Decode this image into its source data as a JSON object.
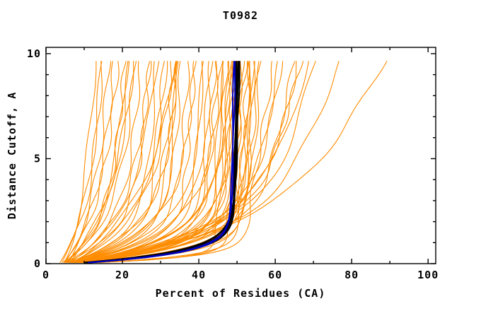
{
  "figure": {
    "background": "#ffffff",
    "frame_color": "#000000",
    "text_color": "#000000"
  },
  "chart_data": {
    "type": "line",
    "title": "T0982",
    "xlabel": "Percent of Residues (CA)",
    "ylabel": "Distance Cutoff, A",
    "xlim": [
      0,
      102
    ],
    "ylim": [
      0,
      10.3
    ],
    "x_major_ticks": [
      0,
      20,
      40,
      60,
      80,
      100
    ],
    "x_minor_ticks": [
      10,
      30,
      50,
      70,
      90
    ],
    "y_major_ticks": [
      0,
      5,
      10
    ],
    "y_minor_ticks": [
      1,
      2,
      3,
      4,
      6,
      7,
      8,
      9
    ],
    "grid": false,
    "legend": "none",
    "curve_y_start": 0.05,
    "curve_y_end": 9.7,
    "curve_model": "x(y) = x0 + A*(1-exp(-y/tau)) + B*y  (params per curve: [x0,A,tau,B])",
    "series": [
      {
        "name": "server-model-curves",
        "color": "#ff8c00",
        "width": 1.1,
        "wiggle": 0.55,
        "curves": [
          [
            4.0,
            6.5,
            2.6,
            0.25
          ],
          [
            4.5,
            7.5,
            3.0,
            0.3
          ],
          [
            3.5,
            8.0,
            2.2,
            0.35
          ],
          [
            5.0,
            9.0,
            2.8,
            0.28
          ],
          [
            4.2,
            10.0,
            2.4,
            0.4
          ],
          [
            5.5,
            11.0,
            3.2,
            0.3
          ],
          [
            4.8,
            12.5,
            2.0,
            0.35
          ],
          [
            5.2,
            13.5,
            2.7,
            0.3
          ],
          [
            4.0,
            14.0,
            1.8,
            0.4
          ],
          [
            6.0,
            14.5,
            3.5,
            0.35
          ],
          [
            5.0,
            15.5,
            2.3,
            0.3
          ],
          [
            4.5,
            16.0,
            1.6,
            0.45
          ],
          [
            5.5,
            17.0,
            2.0,
            0.5
          ],
          [
            4.8,
            18.5,
            1.5,
            0.4
          ],
          [
            6.2,
            19.0,
            2.6,
            0.45
          ],
          [
            5.0,
            20.5,
            1.2,
            0.35
          ],
          [
            5.8,
            21.0,
            1.9,
            0.5
          ],
          [
            4.5,
            22.5,
            1.0,
            0.4
          ],
          [
            6.5,
            23.0,
            2.2,
            0.4
          ],
          [
            5.2,
            24.0,
            1.4,
            0.45
          ],
          [
            6.0,
            25.0,
            1.7,
            0.35
          ],
          [
            5.5,
            26.0,
            1.1,
            0.3
          ],
          [
            4.8,
            24.5,
            0.9,
            0.55
          ],
          [
            6.8,
            22.0,
            2.9,
            0.6
          ],
          [
            5.0,
            27.5,
            1.3,
            0.3
          ],
          [
            5.5,
            28.0,
            1.0,
            0.4
          ],
          [
            6.0,
            29.5,
            1.6,
            0.35
          ],
          [
            4.8,
            30.0,
            0.8,
            0.45
          ],
          [
            6.5,
            31.0,
            1.4,
            0.4
          ],
          [
            5.2,
            32.5,
            0.9,
            0.35
          ],
          [
            5.8,
            33.0,
            1.2,
            0.45
          ],
          [
            6.2,
            34.0,
            0.7,
            0.3
          ],
          [
            5.0,
            35.5,
            1.0,
            0.4
          ],
          [
            6.8,
            34.5,
            1.5,
            0.5
          ],
          [
            5.5,
            36.0,
            0.85,
            0.35
          ],
          [
            6.0,
            37.0,
            1.1,
            0.4
          ],
          [
            5.2,
            38.0,
            0.75,
            0.3
          ],
          [
            6.5,
            37.5,
            1.3,
            0.45
          ],
          [
            5.8,
            39.0,
            0.95,
            0.35
          ],
          [
            5.0,
            38.5,
            0.65,
            0.4
          ],
          [
            6.2,
            40.0,
            1.05,
            0.3
          ],
          [
            5.5,
            40.5,
            0.8,
            0.35
          ],
          [
            6.0,
            41.0,
            0.9,
            0.25
          ],
          [
            5.2,
            41.5,
            0.7,
            0.3
          ],
          [
            6.5,
            42.0,
            0.6,
            0.2
          ],
          [
            5.8,
            42.5,
            0.75,
            0.3
          ],
          [
            6.0,
            43.0,
            0.55,
            0.25
          ],
          [
            7.0,
            43.5,
            0.85,
            0.3
          ],
          [
            5.5,
            44.0,
            0.65,
            0.35
          ],
          [
            6.8,
            44.5,
            0.7,
            0.25
          ],
          [
            6.2,
            45.0,
            0.5,
            0.3
          ],
          [
            7.2,
            45.5,
            0.9,
            0.35
          ],
          [
            6.0,
            46.0,
            0.6,
            0.25
          ],
          [
            7.5,
            44.0,
            1.1,
            0.45
          ],
          [
            7.0,
            44.0,
            0.3,
            0.9
          ],
          [
            6.5,
            40.0,
            0.25,
            0.6
          ],
          [
            7.5,
            42.0,
            0.35,
            0.4
          ],
          [
            6.0,
            38.0,
            0.22,
            0.5
          ],
          [
            6.5,
            45.0,
            1.2,
            1.0
          ],
          [
            7.0,
            46.0,
            1.4,
            0.9
          ],
          [
            6.0,
            47.5,
            1.0,
            1.2
          ],
          [
            7.5,
            48.0,
            1.6,
            1.1
          ],
          [
            6.8,
            46.5,
            1.3,
            1.4
          ],
          [
            7.2,
            49.0,
            1.8,
            1.3
          ],
          [
            6.5,
            50.0,
            1.5,
            1.45
          ],
          [
            8.0,
            48.0,
            1.4,
            2.2
          ],
          [
            10.0,
            50.0,
            1.8,
            3.0
          ]
        ]
      },
      {
        "name": "highlight-model-curves-black",
        "color": "#000000",
        "width": 2.0,
        "wiggle": 0.12,
        "curves": [
          [
            7.0,
            42.0,
            0.55,
            0.1
          ],
          [
            7.5,
            41.5,
            0.52,
            0.14
          ],
          [
            6.5,
            42.5,
            0.58,
            0.08
          ],
          [
            7.2,
            41.8,
            0.5,
            0.18
          ],
          [
            6.8,
            42.2,
            0.6,
            0.12
          ]
        ]
      },
      {
        "name": "highlight-model-curves-blue",
        "color": "#0000c0",
        "width": 2.0,
        "wiggle": 0.12,
        "curves": [
          [
            7.0,
            41.2,
            0.5,
            0.1
          ],
          [
            7.3,
            41.0,
            0.48,
            0.13
          ]
        ]
      }
    ]
  }
}
